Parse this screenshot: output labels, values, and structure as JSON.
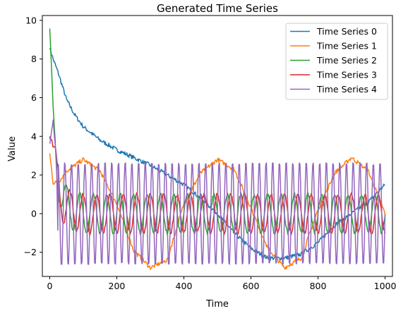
{
  "chart_data": {
    "type": "line",
    "title": "Generated Time Series",
    "xlabel": "Time",
    "ylabel": "Value",
    "xlim": [
      -22,
      1022
    ],
    "ylim": [
      -3.25,
      10.25
    ],
    "xticks": [
      0,
      200,
      400,
      600,
      800,
      1000
    ],
    "yticks": [
      -2,
      0,
      2,
      4,
      6,
      8,
      10
    ],
    "ytick_labels": [
      "−2",
      "0",
      "2",
      "4",
      "6",
      "8",
      "10"
    ],
    "legend_position": "top-right",
    "grid": false,
    "series": [
      {
        "name": "Time Series 0",
        "color": "#1f77b4",
        "sampled": {
          "x": [
            0,
            10,
            25,
            50,
            75,
            100,
            150,
            200,
            250,
            300,
            350,
            400,
            450,
            500,
            550,
            600,
            650,
            700,
            750,
            800,
            850,
            900,
            950,
            1000
          ],
          "y": [
            8.6,
            8.0,
            7.3,
            5.9,
            5.1,
            4.5,
            3.8,
            3.3,
            2.9,
            2.5,
            2.0,
            1.5,
            0.8,
            0.0,
            -1.0,
            -1.8,
            -2.3,
            -2.3,
            -2.1,
            -1.5,
            -0.6,
            0.0,
            0.6,
            1.5
          ]
        }
      },
      {
        "name": "Time Series 1",
        "color": "#ff7f0e",
        "sampled": {
          "x": [
            0,
            10,
            25,
            50,
            100,
            150,
            200,
            250,
            300,
            350,
            400,
            450,
            500,
            550,
            600,
            650,
            700,
            750,
            800,
            850,
            900,
            950,
            1000
          ],
          "y": [
            3.1,
            1.6,
            1.6,
            2.2,
            2.8,
            2.2,
            0.5,
            -1.9,
            -2.8,
            -2.4,
            0.5,
            2.1,
            2.8,
            2.3,
            0.3,
            -1.8,
            -2.8,
            -2.3,
            0.2,
            2.1,
            2.9,
            2.2,
            0.0
          ]
        }
      },
      {
        "name": "Time Series 2",
        "period": 40,
        "color": "#2ca02c",
        "sampled": {
          "x": [
            0,
            5,
            10,
            20,
            30,
            40,
            60,
            100,
            200,
            500,
            1000
          ],
          "y": [
            9.5,
            7.0,
            4.5,
            2.3,
            1.5,
            0.8,
            0.2,
            0.0,
            0.0,
            0.0,
            0.0
          ]
        }
      },
      {
        "name": "Time Series 3",
        "color": "#d62728",
        "sampled": {
          "x": [
            0,
            5,
            10,
            20,
            30,
            40,
            60,
            100,
            200,
            500,
            1000
          ],
          "y": [
            5.0,
            4.6,
            3.5,
            2.0,
            1.0,
            0.5,
            0.2,
            0.0,
            0.0,
            0.0,
            0.0
          ]
        }
      },
      {
        "name": "Time Series 4",
        "color": "#9467bd",
        "sampled": {
          "x": [
            0,
            10,
            20,
            25,
            35,
            45,
            55,
            65,
            75,
            85,
            95,
            1000
          ],
          "y": [
            3.6,
            4.8,
            2.8,
            -1.8,
            2.4,
            -2.4,
            2.6,
            -2.6,
            2.7,
            -2.7,
            2.7,
            2.7
          ]
        }
      }
    ]
  }
}
